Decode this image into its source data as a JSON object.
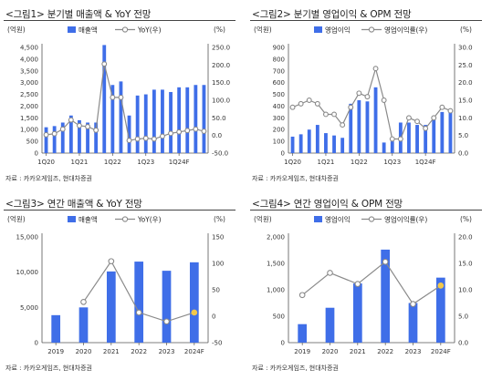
{
  "panels": [
    {
      "title": "<그림1> 분기별 매출액 & YoY 전망",
      "source": "자료 : 카카오게임즈, 현대차증권",
      "chart_data": {
        "type": "bar",
        "left_unit": "(억원)",
        "right_unit": "(%)",
        "left_ticks": [
          "0",
          "500",
          "1,000",
          "1,500",
          "2,000",
          "2,500",
          "3,000",
          "3,500",
          "4,000",
          "4,500"
        ],
        "right_ticks": [
          "-50.0",
          "0.0",
          "50.0",
          "100.0",
          "150.0",
          "200.0",
          "250.0"
        ],
        "x_labels": [
          {
            "i": 0,
            "text": "1Q20"
          },
          {
            "i": 4,
            "text": "1Q21"
          },
          {
            "i": 8,
            "text": "1Q22"
          },
          {
            "i": 12,
            "text": "1Q23"
          },
          {
            "i": 16,
            "text": "1Q24F"
          }
        ],
        "ylim": [
          0,
          4500
        ],
        "y2lim": [
          -50,
          250
        ],
        "series": [
          {
            "name": "매출액",
            "kind": "bar",
            "axis": "left",
            "values": [
              1100,
              1150,
              1300,
              1600,
              1400,
              1300,
              1300,
              4600,
              2900,
              3050,
              1600,
              2450,
              2500,
              2700,
              2700,
              2600,
              2800,
              2800,
              2900,
              2900
            ]
          },
          {
            "name": "YoY(우)",
            "kind": "line",
            "axis": "right",
            "values": [
              2,
              5,
              18,
              44,
              28,
              25,
              15,
              203,
              108,
              108,
              -14,
              -10,
              -8,
              -10,
              -2,
              6,
              10,
              14,
              18,
              12
            ]
          }
        ]
      },
      "colors": {
        "bar": "#3f6ee8",
        "line": "#8a8a8a"
      }
    },
    {
      "title": "<그림2> 분기별 영업이익 & OPM 전망",
      "source": "자료 : 카카오게임즈, 현대차증권",
      "chart_data": {
        "type": "bar",
        "left_unit": "(억원)",
        "right_unit": "(%)",
        "left_ticks": [
          "0",
          "100",
          "200",
          "300",
          "400",
          "500",
          "600",
          "700",
          "800",
          "900"
        ],
        "right_ticks": [
          "0.0",
          "5.0",
          "10.0",
          "15.0",
          "20.0",
          "25.0",
          "30.0"
        ],
        "x_labels": [
          {
            "i": 0,
            "text": "1Q20"
          },
          {
            "i": 4,
            "text": "1Q21"
          },
          {
            "i": 8,
            "text": "1Q22"
          },
          {
            "i": 12,
            "text": "1Q23"
          },
          {
            "i": 16,
            "text": "1Q24F"
          }
        ],
        "ylim": [
          0,
          900
        ],
        "y2lim": [
          0,
          30
        ],
        "series": [
          {
            "name": "영업이익",
            "kind": "bar",
            "axis": "left",
            "values": [
              140,
              160,
              200,
              240,
              170,
              150,
              130,
              420,
              450,
              440,
              560,
              90,
              100,
              260,
              260,
              240,
              240,
              290,
              350,
              350
            ]
          },
          {
            "name": "영업이익률(우)",
            "kind": "line",
            "axis": "right",
            "values": [
              13,
              14,
              15,
              14,
              11,
              11,
              8,
              13,
              17,
              16,
              24,
              15,
              4,
              4,
              10,
              9,
              7,
              10,
              13,
              12
            ]
          }
        ]
      },
      "colors": {
        "bar": "#3f6ee8",
        "line": "#8a8a8a"
      }
    },
    {
      "title": "<그림3> 연간 매출액 & YoY 전망",
      "source": "자료 : 카카오게임즈, 현대차증권",
      "chart_data": {
        "type": "bar",
        "left_unit": "(억원)",
        "right_unit": "(%)",
        "left_ticks": [
          "0",
          "5,000",
          "10,000",
          "15,000"
        ],
        "right_ticks": [
          "-50",
          "0",
          "50",
          "100",
          "150"
        ],
        "x_labels": [
          {
            "i": 0,
            "text": "2019"
          },
          {
            "i": 1,
            "text": "2020"
          },
          {
            "i": 2,
            "text": "2021"
          },
          {
            "i": 3,
            "text": "2022"
          },
          {
            "i": 4,
            "text": "2023"
          },
          {
            "i": 5,
            "text": "2024F"
          }
        ],
        "ylim": [
          0,
          15000
        ],
        "y2lim": [
          -50,
          150
        ],
        "series": [
          {
            "name": "매출액",
            "kind": "bar",
            "axis": "left",
            "values": [
              3900,
              5000,
              10100,
              11500,
              10200,
              11400
            ]
          },
          {
            "name": "YoY(우)",
            "kind": "line",
            "axis": "right",
            "values": [
              null,
              27,
              104,
              7,
              -10,
              7
            ]
          }
        ]
      },
      "colors": {
        "bar": "#3f6ee8",
        "line": "#8a8a8a",
        "marker_last": "#f2c84b"
      }
    },
    {
      "title": "<그림4> 연간 영업이익 & OPM 전망",
      "source": "자료 : 카카오게임즈, 현대차증권",
      "chart_data": {
        "type": "bar",
        "left_unit": "(억원)",
        "right_unit": "(%)",
        "left_ticks": [
          "0",
          "500",
          "1,000",
          "1,500",
          "2,000"
        ],
        "right_ticks": [
          "0.0",
          "5.0",
          "10.0",
          "15.0",
          "20.0"
        ],
        "x_labels": [
          {
            "i": 0,
            "text": "2019"
          },
          {
            "i": 1,
            "text": "2020"
          },
          {
            "i": 2,
            "text": "2021"
          },
          {
            "i": 3,
            "text": "2022"
          },
          {
            "i": 4,
            "text": "2023"
          },
          {
            "i": 5,
            "text": "2024F"
          }
        ],
        "ylim": [
          0,
          2000
        ],
        "y2lim": [
          0,
          20
        ],
        "series": [
          {
            "name": "영업이익",
            "kind": "bar",
            "axis": "left",
            "values": [
              350,
              660,
              1120,
              1760,
              750,
              1230
            ]
          },
          {
            "name": "영업이익률(우)",
            "kind": "line",
            "axis": "right",
            "values": [
              9.0,
              13.2,
              11.1,
              15.3,
              7.3,
              10.8
            ]
          }
        ]
      },
      "colors": {
        "bar": "#3f6ee8",
        "line": "#8a8a8a",
        "marker_last": "#f2c84b"
      }
    }
  ]
}
